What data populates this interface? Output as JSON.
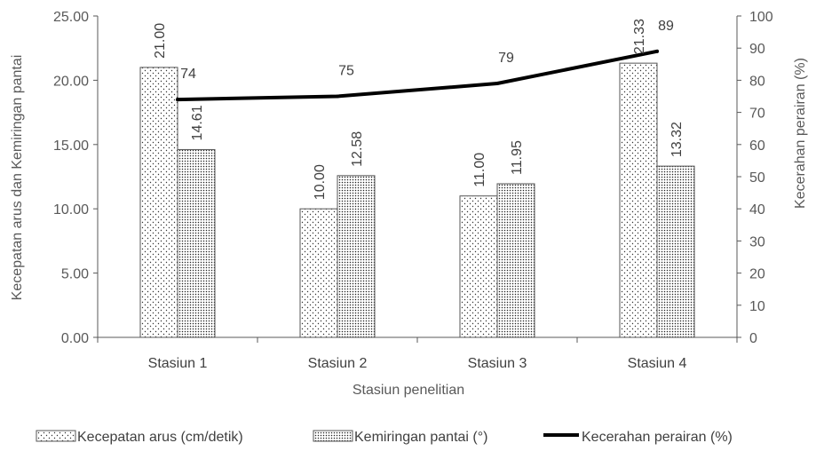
{
  "chart_data": {
    "type": "bar",
    "categories": [
      "Stasiun 1",
      "Stasiun 2",
      "Stasiun 3",
      "Stasiun 4"
    ],
    "xlabel": "Stasiun penelitian",
    "ylabel_left": "Kecepatan arus dan Kemiringan pantai",
    "ylabel_right": "Kecerahan perairan (%)",
    "ylim_left": [
      0,
      25
    ],
    "ylim_right": [
      0,
      100
    ],
    "left_ticks": [
      "0.00",
      "5.00",
      "10.00",
      "15.00",
      "20.00",
      "25.00"
    ],
    "right_ticks": [
      "0",
      "10",
      "20",
      "30",
      "40",
      "50",
      "60",
      "70",
      "80",
      "90",
      "100"
    ],
    "grid": false,
    "legend_position": "bottom",
    "series": [
      {
        "name": "Kecepatan arus (cm/detik)",
        "type": "bar",
        "axis": "left",
        "pattern": "sparse-dots",
        "values": [
          21.0,
          10.0,
          11.0,
          21.33
        ],
        "labels": [
          "21.00",
          "10.00",
          "11.00",
          "21.33"
        ]
      },
      {
        "name": "Kemiringan pantai (°)",
        "type": "bar",
        "axis": "left",
        "pattern": "dense-dots",
        "values": [
          14.61,
          12.58,
          11.95,
          13.32
        ],
        "labels": [
          "14.61",
          "12.58",
          "11.95",
          "13.32"
        ]
      },
      {
        "name": "Kecerahan perairan (%)",
        "type": "line",
        "axis": "right",
        "color": "#000000",
        "values": [
          74,
          75,
          79,
          89
        ],
        "labels": [
          "74",
          "75",
          "79",
          "89"
        ]
      }
    ]
  }
}
